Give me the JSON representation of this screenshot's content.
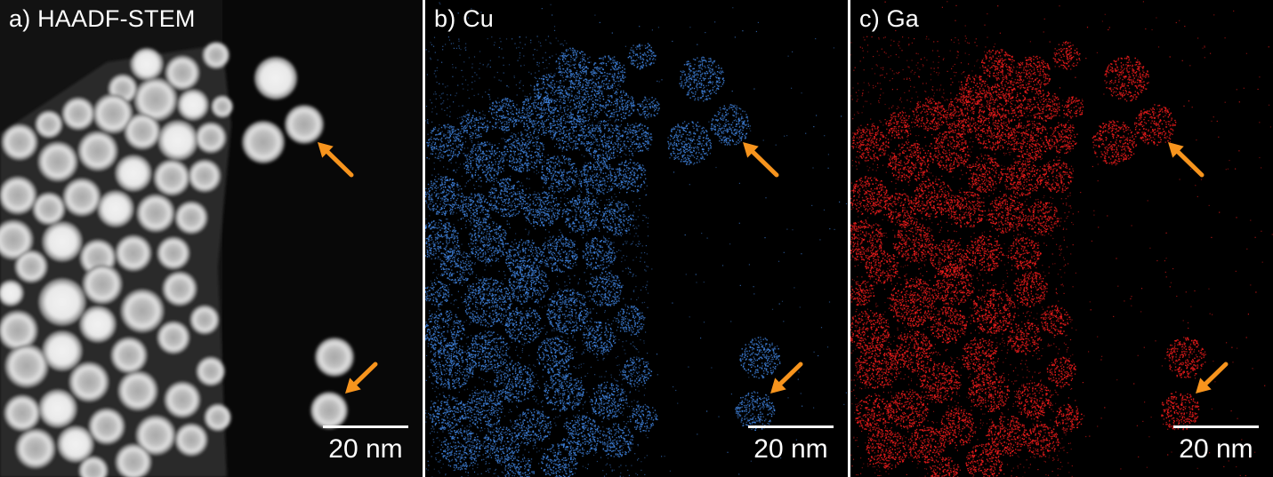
{
  "panels": [
    {
      "label": "a) HAADF-STEM",
      "scalebar": "20 nm",
      "mode": "haadf"
    },
    {
      "label": "b) Cu",
      "scalebar": "20 nm",
      "mode": "map",
      "color": "#3e7fd8"
    },
    {
      "label": "c) Ga",
      "scalebar": "20 nm",
      "mode": "map",
      "color": "#ee1c1c"
    }
  ],
  "colors": {
    "arrow": "#f7941d",
    "haadf_particle": "#d9d9d9",
    "background": "#000000"
  }
}
